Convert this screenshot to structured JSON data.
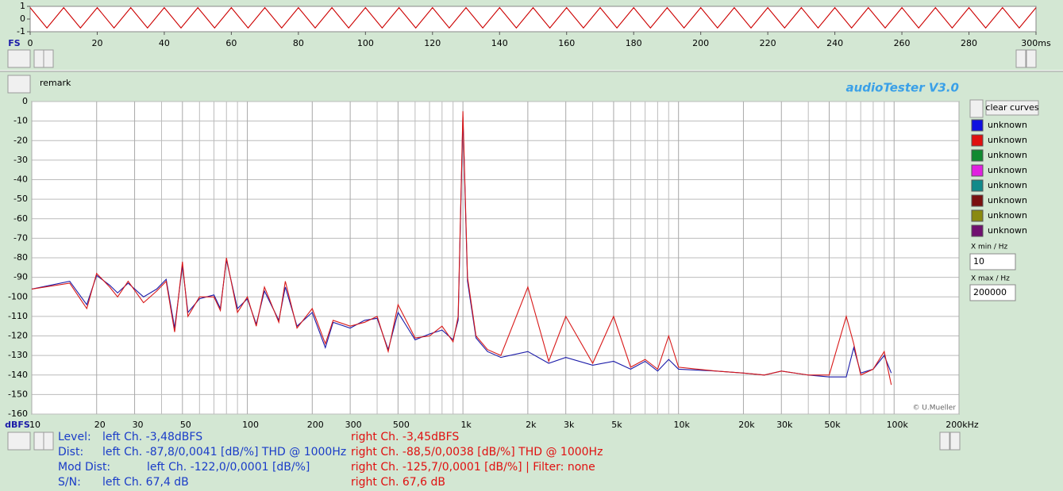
{
  "app": {
    "title": "audioTester  V3.0",
    "remark": "remark",
    "credit": "© U.Mueller",
    "clear_button": "clear curves",
    "curves": [
      {
        "label": "unknown",
        "color": "#1010e0"
      },
      {
        "label": "unknown",
        "color": "#e01010"
      },
      {
        "label": "unknown",
        "color": "#108a30"
      },
      {
        "label": "unknown",
        "color": "#e020e0"
      },
      {
        "label": "unknown",
        "color": "#108a8a"
      },
      {
        "label": "unknown",
        "color": "#7a1010"
      },
      {
        "label": "unknown",
        "color": "#8a8a10"
      },
      {
        "label": "unknown",
        "color": "#701070"
      }
    ],
    "xmin_label": "X min / Hz",
    "xmin": "10",
    "xmax_label": "X max / Hz",
    "xmax": "200000"
  },
  "chart_data": [
    {
      "type": "line",
      "ylabel": "FS",
      "xlim": [
        0,
        300
      ],
      "ylim": [
        -1,
        1
      ],
      "yticks": [
        -1,
        0,
        1
      ],
      "xticks": [
        0,
        20,
        40,
        60,
        80,
        100,
        120,
        140,
        160,
        180,
        200,
        220,
        240,
        260,
        280,
        {
          "value": 300,
          "label": "300ms"
        }
      ],
      "x": [
        0,
        5,
        10,
        15,
        20,
        25,
        30,
        35,
        40,
        45,
        50,
        55,
        60,
        65,
        70,
        75,
        80,
        85,
        90,
        95,
        100,
        105,
        110,
        115,
        120,
        125,
        130,
        135,
        140,
        145,
        150,
        155,
        160,
        165,
        170,
        175,
        180,
        185,
        190,
        195,
        200,
        205,
        210,
        215,
        220,
        225,
        230,
        235,
        240,
        245,
        250,
        255,
        260,
        265,
        270,
        275,
        280,
        285,
        290,
        295,
        300
      ],
      "series": [
        {
          "color": "#cc0000",
          "values": [
            0.9,
            -0.7,
            0.9,
            -0.7,
            0.9,
            -0.7,
            0.9,
            -0.7,
            0.9,
            -0.7,
            0.9,
            -0.7,
            0.9,
            -0.7,
            0.9,
            -0.7,
            0.9,
            -0.7,
            0.9,
            -0.7,
            0.9,
            -0.7,
            0.9,
            -0.7,
            0.9,
            -0.7,
            0.9,
            -0.7,
            0.9,
            -0.7,
            0.9,
            -0.7,
            0.9,
            -0.7,
            0.9,
            -0.7,
            0.9,
            -0.7,
            0.9,
            -0.7,
            0.9,
            -0.7,
            0.9,
            -0.7,
            0.9,
            -0.7,
            0.9,
            -0.7,
            0.9,
            -0.7,
            0.9,
            -0.7,
            0.9,
            -0.7,
            0.9,
            -0.7,
            0.9,
            -0.7,
            0.9,
            -0.7,
            0.9
          ]
        }
      ]
    },
    {
      "type": "line",
      "log_x": true,
      "grid": true,
      "ylabel": "dBFS",
      "xlim": [
        10,
        200000
      ],
      "ylim": [
        -160,
        0
      ],
      "yticks": [
        0,
        -10,
        -20,
        -30,
        -40,
        -50,
        -60,
        -70,
        -80,
        -90,
        -100,
        -110,
        -120,
        -130,
        -140,
        -150,
        -160
      ],
      "xticks": [
        10,
        20,
        30,
        50,
        100,
        200,
        300,
        500,
        {
          "value": 1000,
          "label": "1k"
        },
        {
          "value": 2000,
          "label": "2k"
        },
        {
          "value": 3000,
          "label": "3k"
        },
        {
          "value": 5000,
          "label": "5k"
        },
        {
          "value": 10000,
          "label": "10k"
        },
        {
          "value": 20000,
          "label": "20k"
        },
        {
          "value": 30000,
          "label": "30k"
        },
        {
          "value": 50000,
          "label": "50k"
        },
        {
          "value": 100000,
          "label": "100k"
        },
        {
          "value": 200000,
          "label": "200kHz"
        }
      ],
      "x_minor_ticks": [
        40,
        60,
        70,
        80,
        90,
        400,
        600,
        700,
        800,
        900,
        4000,
        6000,
        7000,
        8000,
        9000,
        40000,
        60000,
        70000,
        80000,
        90000
      ],
      "x": [
        10,
        15,
        18,
        20,
        23,
        25,
        28,
        33,
        38,
        42,
        46,
        50,
        53,
        60,
        70,
        75,
        80,
        90,
        100,
        110,
        120,
        140,
        150,
        170,
        200,
        230,
        250,
        300,
        350,
        400,
        450,
        500,
        600,
        700,
        800,
        900,
        950,
        1000,
        1050,
        1150,
        1300,
        1500,
        2000,
        2500,
        3000,
        4000,
        5000,
        6000,
        7000,
        8000,
        9000,
        10000,
        15000,
        20000,
        25000,
        30000,
        40000,
        50000,
        60000,
        65000,
        70000,
        80000,
        90000,
        97000
      ],
      "series": [
        {
          "color": "#1a1aa8",
          "values": [
            -96,
            -92,
            -104,
            -89,
            -94,
            -98,
            -93,
            -100,
            -96,
            -91,
            -116,
            -84,
            -108,
            -101,
            -99,
            -106,
            -81,
            -106,
            -101,
            -114,
            -97,
            -112,
            -95,
            -115,
            -108,
            -126,
            -113,
            -116,
            -112,
            -111,
            -127,
            -108,
            -122,
            -119,
            -117,
            -122,
            -112,
            -8,
            -92,
            -121,
            -128,
            -131,
            -128,
            -134,
            -131,
            -135,
            -133,
            -137,
            -133,
            -138,
            -132,
            -137,
            -138,
            -139,
            -140,
            -138,
            -140,
            -141,
            -141,
            -126,
            -139,
            -137,
            -130,
            -139
          ]
        },
        {
          "color": "#d81818",
          "values": [
            -96,
            -93,
            -106,
            -88,
            -95,
            -100,
            -92,
            -103,
            -97,
            -92,
            -118,
            -82,
            -110,
            -100,
            -100,
            -107,
            -80,
            -108,
            -100,
            -115,
            -95,
            -113,
            -92,
            -116,
            -106,
            -124,
            -112,
            -115,
            -113,
            -110,
            -128,
            -104,
            -121,
            -120,
            -115,
            -123,
            -110,
            -5,
            -90,
            -120,
            -127,
            -130,
            -95,
            -133,
            -110,
            -134,
            -110,
            -136,
            -132,
            -137,
            -120,
            -136,
            -138,
            -139,
            -140,
            -138,
            -140,
            -140,
            -110,
            -124,
            -140,
            -137,
            -128,
            -145
          ]
        }
      ]
    }
  ],
  "status": [
    {
      "label": "Level:",
      "left": "left Ch. -3,48dBFS",
      "right": "right Ch. -3,45dBFS"
    },
    {
      "label": "Dist:",
      "left": "left Ch. -87,8/0,0041 [dB/%] THD @ 1000Hz",
      "right": "right Ch. -88,5/0,0038 [dB/%] THD @ 1000Hz"
    },
    {
      "label": "Mod Dist:",
      "left": "left Ch. -122,0/0,0001 [dB/%]",
      "right": "right Ch. -125,7/0,0001 [dB/%] |   Filter: none"
    },
    {
      "label": "S/N:",
      "left": "left Ch. 67,4 dB",
      "right": "right Ch. 67,6 dB"
    }
  ]
}
